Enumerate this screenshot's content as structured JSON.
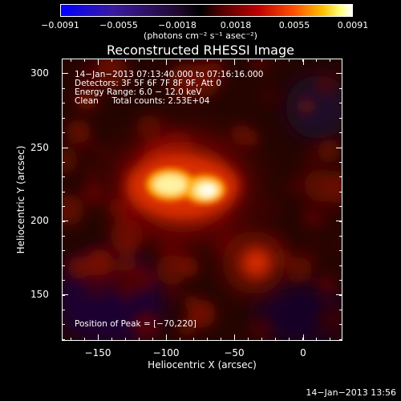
{
  "colorbar": {
    "ticks": [
      "−0.0091",
      "−0.0055",
      "−0.0018",
      "0.0018",
      "0.0055",
      "0.0091"
    ],
    "units": "(photons cm⁻² s⁻¹ asec⁻²)"
  },
  "title": "Reconstructed RHESSI Image",
  "info": {
    "time": "14−Jan−2013 07:13:40.000 to 07:16:16.000",
    "detectors": "Detectors: 3F 5F 6F 7F 8F 9F, Att 0",
    "energy": "Energy Range: 6.0 − 12.0 keV",
    "clean": "Clean     Total counts: 2.53E+04",
    "peak": "Position of Peak = [−70,220]"
  },
  "axes": {
    "xlabel": "Heliocentric X (arcsec)",
    "ylabel": "Heliocentric Y (arcsec)",
    "xticks": [
      "−150",
      "−100",
      "−50",
      "0"
    ],
    "yticks": [
      "300",
      "250",
      "200",
      "150"
    ]
  },
  "timestamp": "14−Jan−2013 13:56",
  "colors": {
    "background": "#000000",
    "peak": "#fffde0"
  }
}
